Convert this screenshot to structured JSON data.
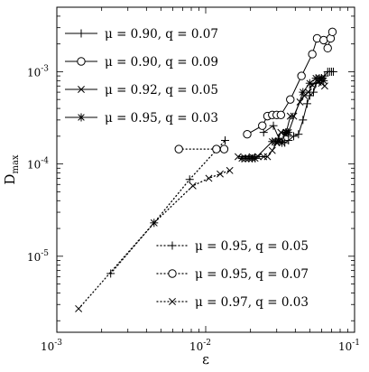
{
  "chart_data": {
    "type": "scatter",
    "xscale": "log",
    "yscale": "log",
    "xlim": [
      0.001,
      0.1
    ],
    "ylim": [
      1.5e-06,
      0.005
    ],
    "grid": false,
    "xlabel": "ε",
    "ylabel_main": "D",
    "ylabel_sub": "max",
    "x_ticks": [
      {
        "value": 0.001,
        "base": "10",
        "exp": "-3"
      },
      {
        "value": 0.01,
        "base": "10",
        "exp": "-2"
      },
      {
        "value": 0.1,
        "base": "10",
        "exp": "-1"
      }
    ],
    "y_ticks": [
      {
        "value": 1e-05,
        "base": "10",
        "exp": "-5"
      },
      {
        "value": 0.0001,
        "base": "10",
        "exp": "-4"
      },
      {
        "value": 0.001,
        "base": "10",
        "exp": "-3"
      }
    ],
    "legend_placement": [
      "top-left",
      "bottom-right"
    ],
    "series": [
      {
        "name": "μ = 0.90, q = 0.07",
        "marker": "plus",
        "line": "solid",
        "legend": "top-left",
        "x": [
          0.0245,
          0.0285,
          0.031,
          0.034,
          0.036,
          0.039,
          0.042,
          0.045,
          0.048,
          0.05,
          0.053,
          0.055,
          0.058,
          0.06,
          0.063,
          0.066,
          0.068,
          0.07,
          0.072
        ],
        "y": [
          0.00022,
          0.00026,
          0.00019,
          0.00017,
          0.00018,
          0.0002,
          0.00021,
          0.0003,
          0.00045,
          0.00055,
          0.0006,
          0.00075,
          0.0008,
          0.00085,
          0.0009,
          0.001,
          0.001,
          0.001,
          0.001
        ]
      },
      {
        "name": "μ = 0.90, q = 0.09",
        "marker": "circle",
        "line": "solid",
        "legend": "top-left",
        "x": [
          0.019,
          0.024,
          0.026,
          0.028,
          0.03,
          0.032,
          0.037,
          0.044,
          0.052,
          0.056,
          0.062,
          0.066,
          0.069,
          0.071
        ],
        "y": [
          0.00021,
          0.00026,
          0.00033,
          0.00034,
          0.00034,
          0.00034,
          0.0005,
          0.0009,
          0.00155,
          0.0023,
          0.0022,
          0.0018,
          0.0023,
          0.0027
        ]
      },
      {
        "name": "μ = 0.92, q = 0.05",
        "marker": "x",
        "line": "solid",
        "legend": "top-left",
        "x": [
          0.0165,
          0.0205,
          0.0225,
          0.0245,
          0.026,
          0.028,
          0.03,
          0.032,
          0.0345,
          0.037,
          0.039,
          0.043,
          0.046,
          0.049,
          0.052,
          0.057,
          0.06,
          0.063
        ],
        "y": [
          0.00012,
          0.00012,
          0.00012,
          0.00012,
          0.00012,
          0.00014,
          0.00017,
          0.00022,
          0.00021,
          0.00033,
          0.00033,
          0.00047,
          0.00055,
          0.0006,
          0.00072,
          0.00077,
          0.00075,
          0.0007
        ]
      },
      {
        "name": "μ = 0.95, q = 0.03",
        "marker": "star",
        "line": "solid",
        "legend": "top-left",
        "x": [
          0.0175,
          0.0185,
          0.0195,
          0.0205,
          0.0215,
          0.028,
          0.0295,
          0.031,
          0.0325,
          0.0345,
          0.035,
          0.036,
          0.045,
          0.05,
          0.055,
          0.058,
          0.06,
          0.062
        ],
        "y": [
          0.000115,
          0.000115,
          0.000115,
          0.000115,
          0.000115,
          0.000175,
          0.000175,
          0.000175,
          0.00017,
          0.00022,
          0.00022,
          0.00022,
          0.0006,
          0.00075,
          0.00085,
          0.00085,
          0.00085,
          0.0008
        ]
      },
      {
        "name": "μ = 0.95, q = 0.05",
        "marker": "plus",
        "line": "dotted",
        "legend": "bottom-right",
        "x": [
          0.0023,
          0.0045,
          0.0078,
          0.0135
        ],
        "y": [
          6.5e-06,
          2.3e-05,
          6.8e-05,
          0.00018
        ]
      },
      {
        "name": "μ = 0.95, q = 0.07",
        "marker": "circle",
        "line": "dotted",
        "legend": "bottom-right",
        "x": [
          0.0066,
          0.0118,
          0.0133
        ],
        "y": [
          0.000145,
          0.000145,
          0.000145
        ]
      },
      {
        "name": "μ = 0.97, q = 0.03",
        "marker": "x",
        "line": "dotted",
        "legend": "bottom-right",
        "x": [
          0.0014,
          0.0045,
          0.0082,
          0.0105,
          0.0125,
          0.0145
        ],
        "y": [
          2.7e-06,
          2.3e-05,
          5.8e-05,
          7e-05,
          7.8e-05,
          8.5e-05
        ]
      }
    ]
  }
}
